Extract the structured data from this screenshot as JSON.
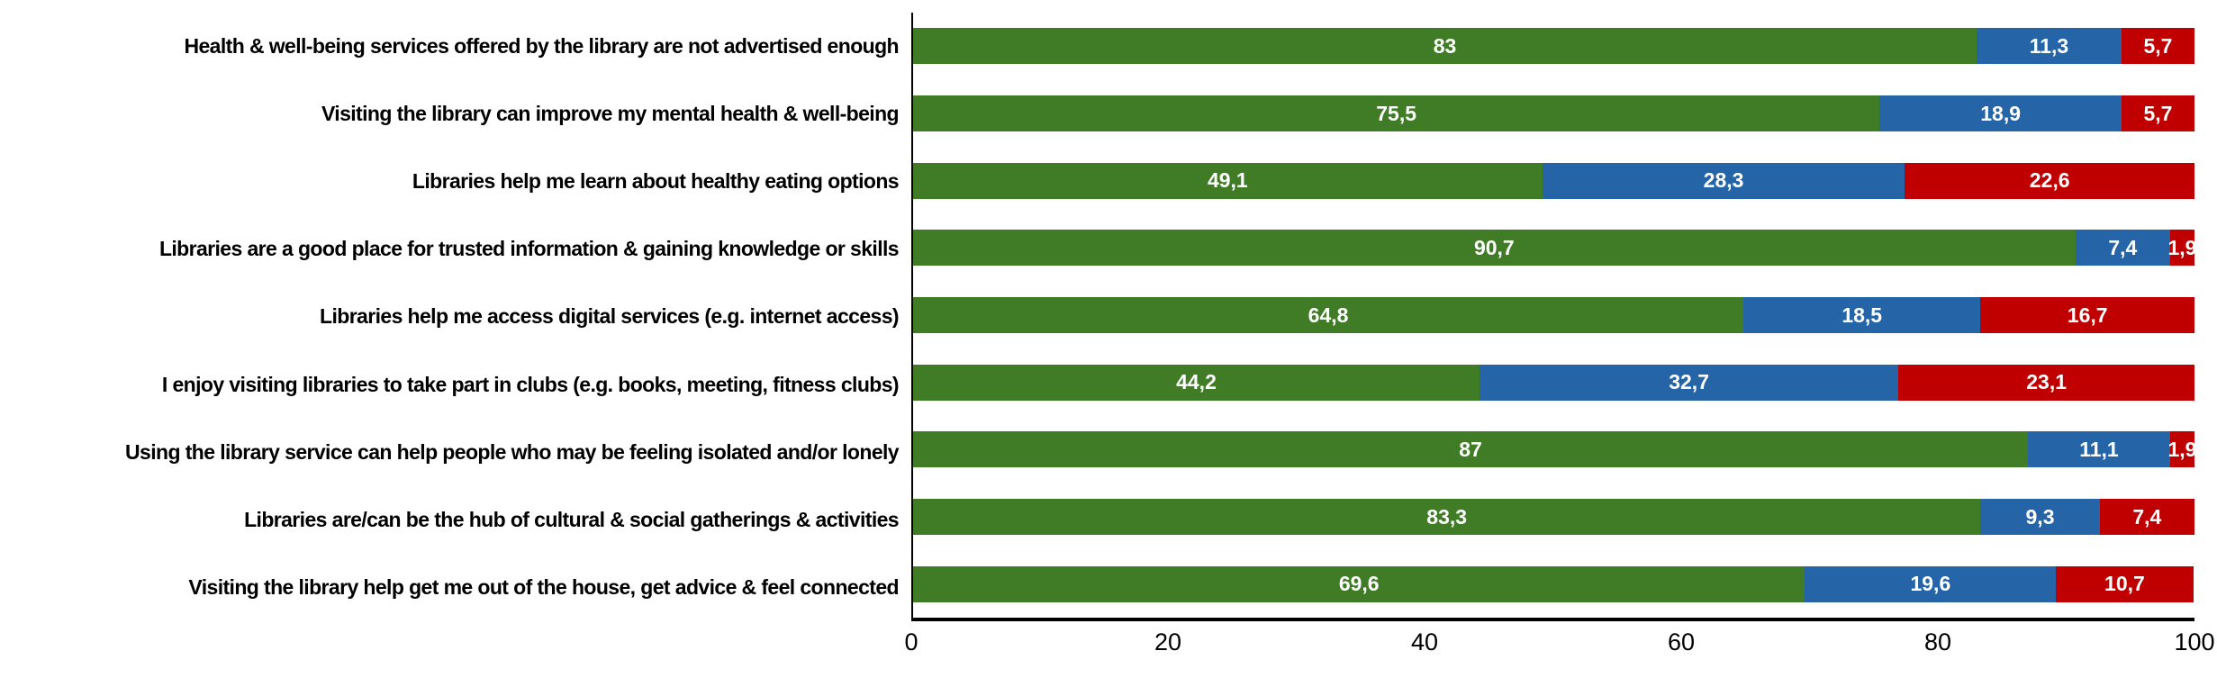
{
  "chart_data": {
    "type": "bar",
    "orientation": "horizontal",
    "stacked": true,
    "title": "",
    "legend": "none",
    "grid": false,
    "series_colors": [
      "#3F7C25",
      "#2565A7",
      "#C00000"
    ],
    "series_color_names": [
      "green",
      "blue",
      "red"
    ],
    "x_axis": {
      "min": 0,
      "max": 100,
      "ticks": [
        "0",
        "20",
        "40",
        "60",
        "80",
        "100"
      ],
      "tick_values": [
        0,
        20,
        40,
        60,
        80,
        100
      ]
    },
    "rows": [
      {
        "label": "Health & well-being services offered by the library are not advertised enough",
        "values": [
          83,
          11.3,
          5.7
        ],
        "value_labels": [
          "83",
          "11,3",
          "5,7"
        ]
      },
      {
        "label": "Visiting the library can improve my mental health & well-being",
        "values": [
          75.5,
          18.9,
          5.7
        ],
        "value_labels": [
          "75,5",
          "18,9",
          "5,7"
        ]
      },
      {
        "label": "Libraries help me learn about healthy eating options",
        "values": [
          49.1,
          28.3,
          22.6
        ],
        "value_labels": [
          "49,1",
          "28,3",
          "22,6"
        ]
      },
      {
        "label": "Libraries are a good place for trusted information & gaining knowledge or skills",
        "values": [
          90.7,
          7.4,
          1.9
        ],
        "value_labels": [
          "90,7",
          "7,4",
          "1,9"
        ]
      },
      {
        "label": "Libraries help me access digital services (e.g. internet access)",
        "values": [
          64.8,
          18.5,
          16.7
        ],
        "value_labels": [
          "64,8",
          "18,5",
          "16,7"
        ]
      },
      {
        "label": "I enjoy visiting libraries to take part in clubs (e.g. books, meeting, fitness clubs)",
        "values": [
          44.2,
          32.7,
          23.1
        ],
        "value_labels": [
          "44,2",
          "32,7",
          "23,1"
        ]
      },
      {
        "label": "Using the library service can help people who may be feeling isolated and/or lonely",
        "values": [
          87,
          11.1,
          1.9
        ],
        "value_labels": [
          "87",
          "11,1",
          "1,9"
        ]
      },
      {
        "label": "Libraries are/can be the hub of cultural & social gatherings & activities",
        "values": [
          83.3,
          9.3,
          7.4
        ],
        "value_labels": [
          "83,3",
          "9,3",
          "7,4"
        ]
      },
      {
        "label": "Visiting the library help get me out of the house, get advice & feel connected",
        "values": [
          69.6,
          19.6,
          10.7
        ],
        "value_labels": [
          "69,6",
          "19,6",
          "10,7"
        ]
      }
    ]
  }
}
